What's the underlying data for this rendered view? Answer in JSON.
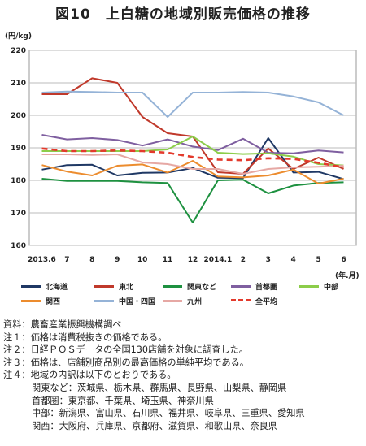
{
  "title": "図10　上白糖の地域別販売価格の推移",
  "unit_label": "(円/kg)",
  "x_unit_label": "(年.月)",
  "chart_data": {
    "type": "line",
    "title": "図10　上白糖の地域別販売価格の推移",
    "ylabel": "(円/kg)",
    "xlabel": "(年.月)",
    "ylim": [
      160,
      220
    ],
    "yticks": [
      160,
      170,
      180,
      190,
      200,
      210,
      220
    ],
    "grid": "horizontal",
    "legend_position": "bottom",
    "categories": [
      "2013.6",
      "7",
      "8",
      "9",
      "10",
      "11",
      "12",
      "2014.1",
      "2",
      "3",
      "4",
      "5",
      "6"
    ],
    "series": [
      {
        "name": "北海道",
        "color": "#1f3864",
        "dashed": false,
        "values": [
          183.3,
          184.7,
          184.8,
          181.5,
          182.3,
          182.4,
          183.8,
          180.8,
          180.7,
          193.0,
          182.4,
          182.6,
          180.4
        ]
      },
      {
        "name": "東北",
        "color": "#c0392b",
        "dashed": false,
        "values": [
          206.5,
          206.5,
          211.4,
          210.0,
          199.5,
          194.5,
          193.5,
          182.5,
          182.0,
          189.8,
          183.5,
          187.0,
          183.5
        ]
      },
      {
        "name": "関東など",
        "color": "#1e9140",
        "dashed": false,
        "values": [
          180.5,
          179.8,
          179.8,
          179.8,
          179.4,
          179.2,
          167.0,
          180.0,
          180.2,
          176.0,
          178.4,
          179.2,
          179.4
        ]
      },
      {
        "name": "首都圏",
        "color": "#7f5fa0",
        "dashed": false,
        "values": [
          194.0,
          192.6,
          193.0,
          192.4,
          190.7,
          192.6,
          190.4,
          189.3,
          192.8,
          188.5,
          188.3,
          189.2,
          188.6
        ]
      },
      {
        "name": "中部",
        "color": "#8ccd4a",
        "dashed": false,
        "values": [
          189.0,
          189.0,
          189.0,
          189.0,
          189.0,
          189.5,
          193.5,
          188.5,
          188.1,
          188.3,
          187.3,
          185.0,
          184.6
        ]
      },
      {
        "name": "関西",
        "color": "#ec8c2e",
        "dashed": false,
        "values": [
          184.7,
          182.7,
          181.5,
          184.5,
          184.9,
          182.4,
          186.0,
          181.2,
          180.9,
          181.5,
          183.3,
          179.0,
          180.5
        ]
      },
      {
        "name": "中国・四国",
        "color": "#95b3d7",
        "dashed": false,
        "values": [
          207.0,
          207.3,
          207.2,
          207.0,
          207.0,
          199.5,
          207.0,
          207.0,
          207.2,
          207.0,
          205.8,
          204.0,
          200.0
        ]
      },
      {
        "name": "九州",
        "color": "#e6a8a4",
        "dashed": false,
        "values": [
          188.0,
          188.0,
          187.8,
          188.0,
          185.5,
          185.0,
          183.5,
          183.5,
          182.0,
          183.5,
          184.0,
          184.2,
          184.5
        ]
      },
      {
        "name": "全平均",
        "color": "#e33a2c",
        "dashed": true,
        "values": [
          189.8,
          189.0,
          189.0,
          189.2,
          189.0,
          188.5,
          187.2,
          186.4,
          186.2,
          186.8,
          186.6,
          185.4,
          184.0
        ]
      }
    ]
  },
  "notes": [
    "資料：農畜産業振興機構調べ",
    "注１：価格は消費税抜きの価格である。",
    "注２：日経ＰＯＳデータの全国130店舗を対象に調査した。",
    "注３：価格は、店舗別商品別の最高価格の単純平均である。",
    "注４：地域の内訳は以下のとおりである。"
  ],
  "region_notes": [
    "関東など：茨城県、栃木県、群馬県、長野県、山梨県、静岡県",
    "首都圏：東京都、千葉県、埼玉県、神奈川県",
    "中部：新潟県、富山県、石川県、福井県、岐阜県、三重県、愛知県",
    "関西：大阪府、兵庫県、京都府、滋賀県、和歌山県、奈良県"
  ]
}
